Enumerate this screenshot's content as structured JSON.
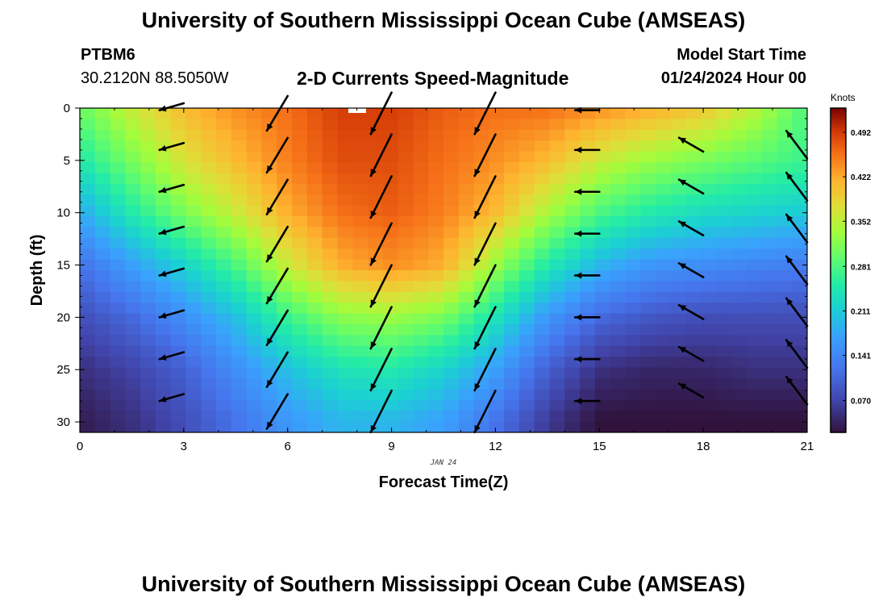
{
  "page_title": "University of Southern Mississippi Ocean Cube (AMSEAS)",
  "footer_title": "University of Southern Mississippi Ocean Cube (AMSEAS)",
  "station": {
    "id": "PTBM6",
    "coords": "30.2120N  88.5050W"
  },
  "model": {
    "label": "Model Start Time",
    "time": "01/24/2024 Hour 00"
  },
  "chart_data": {
    "type": "heatmap",
    "title": "2-D Currents Speed-Magnitude",
    "xlabel": "Forecast Time(Z)",
    "ylabel": "Depth (ft)",
    "date_label": "JAN 24",
    "x_range": [
      0,
      21
    ],
    "y_range": [
      0,
      31
    ],
    "y_inverted": true,
    "x_ticks": [
      0,
      3,
      6,
      9,
      12,
      15,
      18,
      21
    ],
    "y_ticks": [
      0,
      5,
      10,
      15,
      20,
      25,
      30
    ],
    "colorbar": {
      "unit": "Knots",
      "range": [
        0.02,
        0.53
      ],
      "ticks": [
        0.07,
        0.141,
        0.211,
        0.281,
        0.352,
        0.422,
        0.492
      ],
      "tick_labels": [
        "0.070",
        "0.141",
        "0.211",
        "0.281",
        "0.352",
        "0.422",
        "0.492"
      ]
    },
    "speed_field": {
      "description": "current speed (knots) sampled at forecast hours (columns) and depths in ft (rows)",
      "x": [
        0,
        1.5,
        3,
        4.5,
        6,
        7.5,
        9,
        10.5,
        12,
        13.5,
        15,
        16.5,
        18,
        19.5,
        21
      ],
      "depth": [
        0,
        5,
        10,
        15,
        20,
        25,
        30
      ],
      "values": [
        [
          0.3,
          0.36,
          0.41,
          0.44,
          0.46,
          0.49,
          0.49,
          0.47,
          0.46,
          0.46,
          0.44,
          0.42,
          0.4,
          0.35,
          0.28
        ],
        [
          0.25,
          0.31,
          0.37,
          0.41,
          0.45,
          0.48,
          0.48,
          0.46,
          0.44,
          0.41,
          0.36,
          0.33,
          0.31,
          0.29,
          0.27
        ],
        [
          0.18,
          0.25,
          0.31,
          0.36,
          0.42,
          0.46,
          0.47,
          0.45,
          0.41,
          0.34,
          0.28,
          0.25,
          0.23,
          0.22,
          0.21
        ],
        [
          0.12,
          0.17,
          0.22,
          0.28,
          0.36,
          0.42,
          0.44,
          0.42,
          0.33,
          0.25,
          0.19,
          0.16,
          0.15,
          0.14,
          0.13
        ],
        [
          0.08,
          0.11,
          0.15,
          0.2,
          0.27,
          0.32,
          0.33,
          0.31,
          0.24,
          0.16,
          0.11,
          0.09,
          0.08,
          0.08,
          0.08
        ],
        [
          0.05,
          0.07,
          0.1,
          0.15,
          0.2,
          0.24,
          0.25,
          0.22,
          0.17,
          0.1,
          0.05,
          0.04,
          0.04,
          0.05,
          0.05
        ],
        [
          0.03,
          0.05,
          0.08,
          0.12,
          0.16,
          0.19,
          0.19,
          0.17,
          0.12,
          0.06,
          0.02,
          0.02,
          0.02,
          0.02,
          0.02
        ]
      ]
    },
    "vectors": {
      "description": "current direction arrows drawn at forecast hour and depth (ft); head is the pointed end",
      "columns": [
        {
          "hour": 3,
          "depths": [
            0.2,
            4,
            8,
            12,
            16,
            20,
            24,
            28
          ],
          "tail": [
            0,
            -0.2
          ],
          "head": [
            -0.7,
            0
          ]
        },
        {
          "hour": 6,
          "depths": [
            0.5,
            4.5,
            8.5,
            13,
            17,
            21,
            25,
            29
          ],
          "tail": [
            0,
            -0.5
          ],
          "head": [
            -0.6,
            0.5
          ]
        },
        {
          "hour": 9,
          "depths": [
            0.5,
            4.5,
            8.5,
            13,
            17,
            21,
            25,
            29
          ],
          "tail": [
            0,
            -0.6
          ],
          "head": [
            -0.6,
            0.6
          ]
        },
        {
          "hour": 12,
          "depths": [
            0.5,
            4.5,
            8.5,
            13,
            17,
            21,
            25,
            29
          ],
          "tail": [
            0,
            -0.6
          ],
          "head": [
            -0.6,
            0.6
          ]
        },
        {
          "hour": 15,
          "depths": [
            0.2,
            4,
            8,
            12,
            16,
            20,
            24,
            28
          ],
          "tail": [
            0,
            0
          ],
          "head": [
            -0.7,
            0
          ]
        },
        {
          "hour": 18,
          "depths": [
            3.5,
            7.5,
            11.5,
            15.5,
            19.5,
            23.5,
            27
          ],
          "tail": [
            0,
            0.2
          ],
          "head": [
            -0.7,
            -0.2
          ]
        },
        {
          "hour": 21,
          "depths": [
            3.5,
            7.5,
            11.5,
            15.5,
            19.5,
            23.5,
            27
          ],
          "tail": [
            0,
            0.4
          ],
          "head": [
            -0.6,
            -0.4
          ]
        }
      ]
    }
  }
}
